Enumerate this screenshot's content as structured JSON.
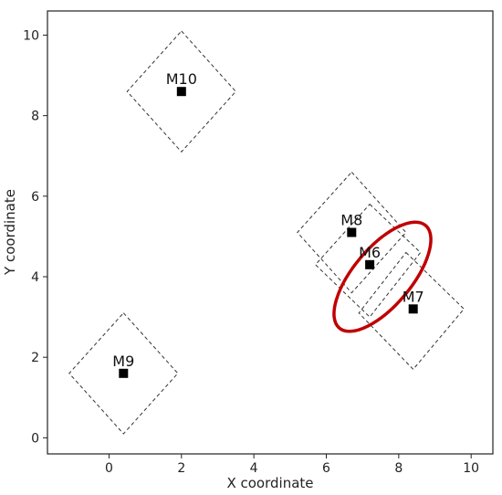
{
  "chart_data": {
    "type": "scatter",
    "xlabel": "X coordinate",
    "ylabel": "Y coordinate",
    "xlim": [
      -1.7,
      10.6
    ],
    "ylim": [
      -0.4,
      10.6
    ],
    "xticks": [
      0,
      2,
      4,
      6,
      8,
      10
    ],
    "yticks": [
      0,
      2,
      4,
      6,
      8,
      10
    ],
    "grid": false,
    "points": [
      {
        "label": "M10",
        "x": 2.0,
        "y": 8.6
      },
      {
        "label": "M8",
        "x": 6.7,
        "y": 5.1
      },
      {
        "label": "M6",
        "x": 7.2,
        "y": 4.3
      },
      {
        "label": "M7",
        "x": 8.4,
        "y": 3.2
      },
      {
        "label": "M9",
        "x": 0.4,
        "y": 1.6
      }
    ],
    "regions": [
      {
        "shape": "diamond",
        "style": "dashed",
        "corners": [
          [
            2.0,
            10.1
          ],
          [
            3.5,
            8.6
          ],
          [
            2.0,
            7.1
          ],
          [
            0.5,
            8.6
          ]
        ]
      },
      {
        "shape": "diamond",
        "style": "dashed",
        "corners": [
          [
            0.4,
            3.1
          ],
          [
            1.9,
            1.6
          ],
          [
            0.4,
            0.1
          ],
          [
            -1.1,
            1.6
          ]
        ]
      },
      {
        "shape": "rotated-rect",
        "style": "dashed",
        "corners": [
          [
            6.7,
            6.6
          ],
          [
            8.2,
            5.1
          ],
          [
            6.7,
            3.6
          ],
          [
            5.2,
            5.1
          ]
        ]
      },
      {
        "shape": "rotated-rect",
        "style": "dashed",
        "corners": [
          [
            7.2,
            5.8
          ],
          [
            8.6,
            4.6
          ],
          [
            7.2,
            3.0
          ],
          [
            5.7,
            4.3
          ]
        ]
      },
      {
        "shape": "rotated-rect",
        "style": "dashed",
        "corners": [
          [
            8.2,
            4.6
          ],
          [
            9.8,
            3.2
          ],
          [
            8.4,
            1.7
          ],
          [
            6.9,
            3.1
          ]
        ]
      }
    ],
    "highlight": {
      "shape": "ellipse",
      "color": "#c00000",
      "center": [
        7.55,
        4.0
      ],
      "rx": 1.85,
      "ry": 0.72,
      "rotation_deg": -50
    }
  }
}
